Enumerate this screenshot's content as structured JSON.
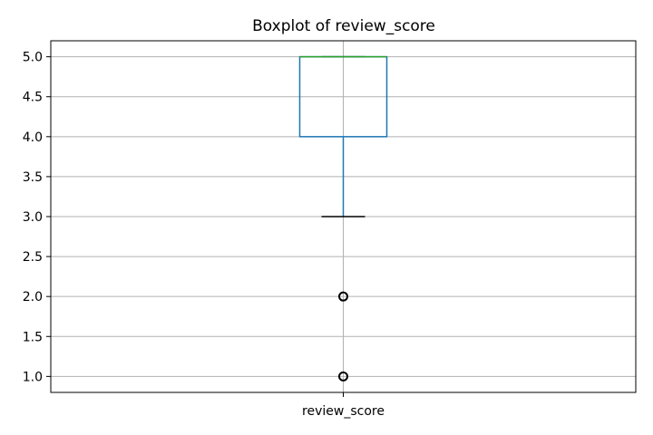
{
  "chart_data": {
    "type": "box",
    "title": "Boxplot of review_score",
    "categories": [
      "review_score"
    ],
    "ylim": [
      0.8,
      5.2
    ],
    "yticks": [
      "1.0",
      "1.5",
      "2.0",
      "2.5",
      "3.0",
      "3.5",
      "4.0",
      "4.5",
      "5.0"
    ],
    "grid": true,
    "boxes": [
      {
        "category": "review_score",
        "whisker_low": 3.0,
        "q1": 4.0,
        "median": 5.0,
        "q3": 5.0,
        "whisker_high": 5.0,
        "outliers": [
          2.0,
          1.0
        ]
      }
    ],
    "colors": {
      "box": "#1f77b4",
      "median": "#2ca02c",
      "cap": "#000000",
      "grid": "#b0b0b0",
      "outlier": "#000000"
    }
  }
}
